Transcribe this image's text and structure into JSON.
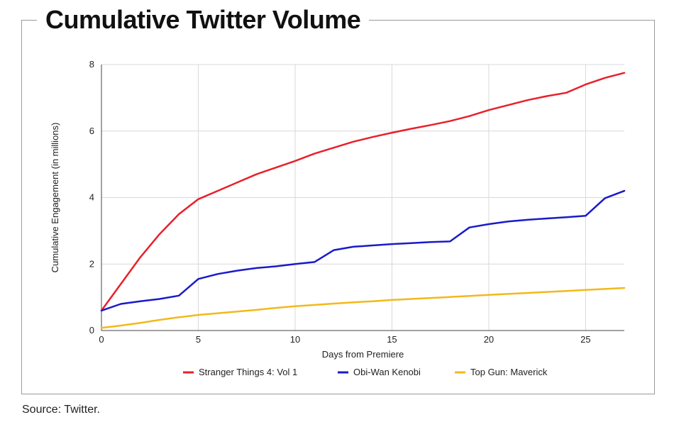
{
  "chart_data": {
    "type": "line",
    "title": "Cumulative Twitter Volume",
    "xlabel": "Days from Premiere",
    "ylabel": "Cumulative Engagement (in millions)",
    "xlim": [
      0,
      27
    ],
    "ylim": [
      0,
      8
    ],
    "xticks": [
      0,
      5,
      10,
      15,
      20,
      25
    ],
    "yticks": [
      0,
      2,
      4,
      6,
      8
    ],
    "grid": true,
    "legend_position": "bottom",
    "x": [
      0,
      1,
      2,
      3,
      4,
      5,
      6,
      7,
      8,
      9,
      10,
      11,
      12,
      13,
      14,
      15,
      16,
      17,
      18,
      19,
      20,
      21,
      22,
      23,
      24,
      25,
      26,
      27
    ],
    "series": [
      {
        "name": "Stranger Things 4: Vol 1",
        "color": "#e8202a",
        "values": [
          0.6,
          1.4,
          2.2,
          2.9,
          3.5,
          3.95,
          4.2,
          4.45,
          4.7,
          4.9,
          5.1,
          5.32,
          5.5,
          5.68,
          5.82,
          5.95,
          6.07,
          6.18,
          6.3,
          6.45,
          6.63,
          6.78,
          6.93,
          7.05,
          7.15,
          7.4,
          7.6,
          7.75
        ]
      },
      {
        "name": "Obi-Wan Kenobi",
        "color": "#1a1acb",
        "values": [
          0.6,
          0.8,
          0.88,
          0.95,
          1.05,
          1.55,
          1.7,
          1.8,
          1.88,
          1.93,
          2.0,
          2.06,
          2.42,
          2.52,
          2.56,
          2.6,
          2.63,
          2.66,
          2.68,
          3.1,
          3.2,
          3.28,
          3.33,
          3.37,
          3.41,
          3.45,
          3.98,
          4.2
        ]
      },
      {
        "name": "Top Gun: Maverick",
        "color": "#f2b91b",
        "values": [
          0.08,
          0.15,
          0.23,
          0.32,
          0.4,
          0.47,
          0.52,
          0.57,
          0.62,
          0.68,
          0.73,
          0.77,
          0.81,
          0.85,
          0.88,
          0.92,
          0.95,
          0.98,
          1.01,
          1.04,
          1.07,
          1.1,
          1.13,
          1.16,
          1.19,
          1.22,
          1.25,
          1.28
        ]
      }
    ]
  },
  "source": "Source: Twitter."
}
